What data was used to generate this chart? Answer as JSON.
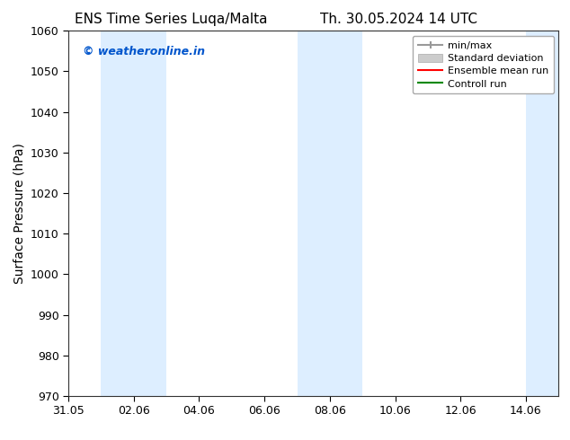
{
  "title_left": "ENS Time Series Luqa/Malta",
  "title_right": "Th. 30.05.2024 14 UTC",
  "ylabel": "Surface Pressure (hPa)",
  "ylim": [
    970,
    1060
  ],
  "yticks": [
    970,
    980,
    990,
    1000,
    1010,
    1020,
    1030,
    1040,
    1050,
    1060
  ],
  "xtick_labels": [
    "31.05",
    "02.06",
    "04.06",
    "06.06",
    "08.06",
    "10.06",
    "12.06",
    "14.06"
  ],
  "xtick_positions": [
    0,
    2,
    4,
    6,
    8,
    10,
    12,
    14
  ],
  "xlim": [
    0,
    15
  ],
  "bg_color": "#ffffff",
  "plot_bg_color": "#ffffff",
  "shaded_bands": [
    {
      "x_start": 1,
      "x_end": 3,
      "color": "#ddeeff"
    },
    {
      "x_start": 7,
      "x_end": 9,
      "color": "#ddeeff"
    },
    {
      "x_start": 14,
      "x_end": 15,
      "color": "#ddeeff"
    }
  ],
  "watermark_text": "© weatheronline.in",
  "watermark_color": "#0055cc",
  "legend_items": [
    {
      "label": "min/max",
      "color": "#aaaaaa",
      "style": "errorbar"
    },
    {
      "label": "Standard deviation",
      "color": "#cccccc",
      "style": "band"
    },
    {
      "label": "Ensemble mean run",
      "color": "#ff0000",
      "style": "line"
    },
    {
      "label": "Controll run",
      "color": "#008800",
      "style": "line"
    }
  ],
  "title_fontsize": 11,
  "axis_label_fontsize": 10,
  "tick_fontsize": 9,
  "legend_fontsize": 8,
  "watermark_fontsize": 9
}
